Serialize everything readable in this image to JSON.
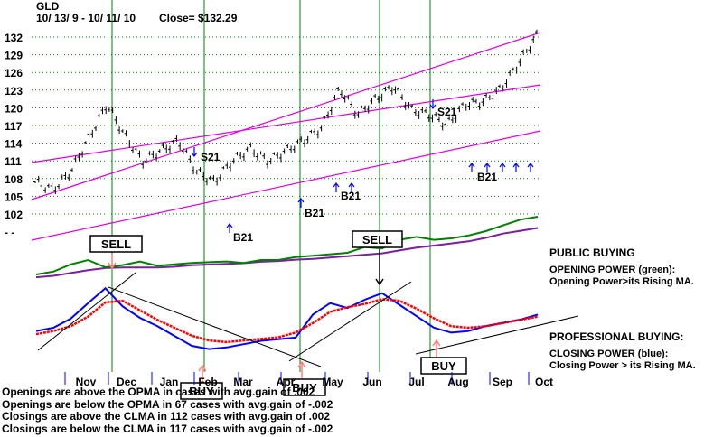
{
  "header": {
    "ticker": "GLD",
    "period": "10/ 13/ 9  -  10/ 11/ 10",
    "close_label": "Close= $132.29"
  },
  "colors": {
    "price": "#000000",
    "channel": "#e000e0",
    "vertical_lines": "#008000",
    "grid": "#008000",
    "opening_power": "#008000",
    "opening_ma": "#7a1fa0",
    "closing_power": "#0000ff",
    "closing_ma": "#ff0000",
    "signals": "#0000ff",
    "box_sell_arrow": "#ff8080"
  },
  "chart_data": [
    {
      "type": "line",
      "name": "GLD price (high-low bars)",
      "title": "GLD",
      "ylim": [
        100,
        133
      ],
      "y_ticks": [
        "132",
        "129",
        "126",
        "123",
        "120",
        "117",
        "114",
        "111",
        "108",
        "105",
        "102",
        "- -"
      ],
      "x_ticks": [
        "Nov",
        "Dec",
        "Jan",
        "Feb",
        "Mar",
        "Apr",
        "May",
        "Jun",
        "Jul",
        "Aug",
        "Sep",
        "Oct"
      ],
      "series": [
        {
          "x": [
            "Oct 13",
            "Oct 27",
            "Nov 10",
            "Nov 24",
            "Dec 2",
            "Dec 10",
            "Dec 22",
            "Jan 5",
            "Jan 19",
            "Feb 2",
            "Feb 5",
            "Feb 16",
            "Mar 2",
            "Mar 16",
            "Mar 30",
            "Apr 13",
            "Apr 27",
            "May 12",
            "May 20",
            "Jun 1",
            "Jun 18",
            "Jun 30",
            "Jul 13",
            "Jul 28",
            "Aug 10",
            "Aug 24",
            "Sep 8",
            "Sep 22",
            "Oct 11"
          ],
          "values": [
            104,
            102.5,
            106,
            112.5,
            119,
            113,
            108,
            110,
            112,
            106,
            104,
            108,
            110.5,
            108,
            110,
            112,
            114.5,
            122,
            117,
            120,
            122.5,
            118,
            117,
            115,
            119,
            119.5,
            122,
            127,
            132.3
          ]
        }
      ],
      "channel_lines": [
        {
          "from": [
            "Oct 13",
            105
          ],
          "to": [
            "Oct 11",
            132
          ]
        },
        {
          "from": [
            "Oct 13",
            111
          ],
          "to": [
            "Oct 11",
            138
          ]
        },
        {
          "from": [
            "Oct 13",
            98.5
          ],
          "to": [
            "Oct 11",
            125.5
          ]
        }
      ],
      "signal_labels": [
        "S21",
        "B21",
        "B21",
        "B21",
        "S21",
        "B21"
      ]
    },
    {
      "type": "line",
      "name": "Opening Power",
      "series": [
        {
          "name": "Opening Power (green)",
          "values": [
            20,
            24,
            34,
            40,
            30,
            33,
            38,
            32,
            34,
            36,
            37,
            38,
            36,
            40,
            40,
            44,
            46,
            48,
            50,
            58,
            56,
            68,
            72,
            68,
            70,
            74,
            80,
            88,
            96,
            100
          ]
        },
        {
          "name": "Opening Power MA (purple)",
          "values": [
            14,
            16,
            20,
            24,
            27,
            28,
            28,
            28,
            29,
            31,
            32,
            33,
            34,
            36,
            37,
            39,
            40,
            42,
            44,
            46,
            48,
            52,
            56,
            59,
            62,
            65,
            70,
            76,
            80,
            84
          ]
        }
      ]
    },
    {
      "type": "line",
      "name": "Closing Power",
      "series": [
        {
          "name": "Closing Power (blue)",
          "values": [
            40,
            44,
            55,
            74,
            92,
            70,
            56,
            46,
            34,
            22,
            18,
            20,
            24,
            28,
            30,
            32,
            60,
            74,
            68,
            78,
            86,
            72,
            58,
            44,
            38,
            40,
            46,
            50,
            54,
            60
          ]
        },
        {
          "name": "Closing Power MA (red)",
          "values": [
            34,
            38,
            44,
            56,
            74,
            76,
            64,
            52,
            42,
            32,
            26,
            24,
            26,
            28,
            30,
            36,
            48,
            62,
            68,
            72,
            78,
            76,
            66,
            54,
            44,
            42,
            44,
            48,
            52,
            56
          ]
        }
      ]
    }
  ],
  "markers": {
    "sell": "SELL",
    "buy": "BUY"
  },
  "legend": {
    "public_title": "PUBLIC BUYING",
    "opening_title": "OPENING POWER (green):",
    "opening_desc": "Opening Power>its Rising MA.",
    "pro_title": "PROFESSIONAL BUYING:",
    "closing_title": "CLOSING POWER (blue):",
    "closing_desc": "Closing Power > its Rising MA."
  },
  "stats": {
    "line1": "Openings are above the OPMA in   cases with avg.gain of  .002",
    "line2": "Openings are below the OPMA in   67 cases with avg.gain of -.002",
    "line3": "Closings are above the CLMA in   112 cases with avg.gain of  .002",
    "line4": "Closings are below the CLMA in   117 cases with avg.gain of -.002"
  }
}
